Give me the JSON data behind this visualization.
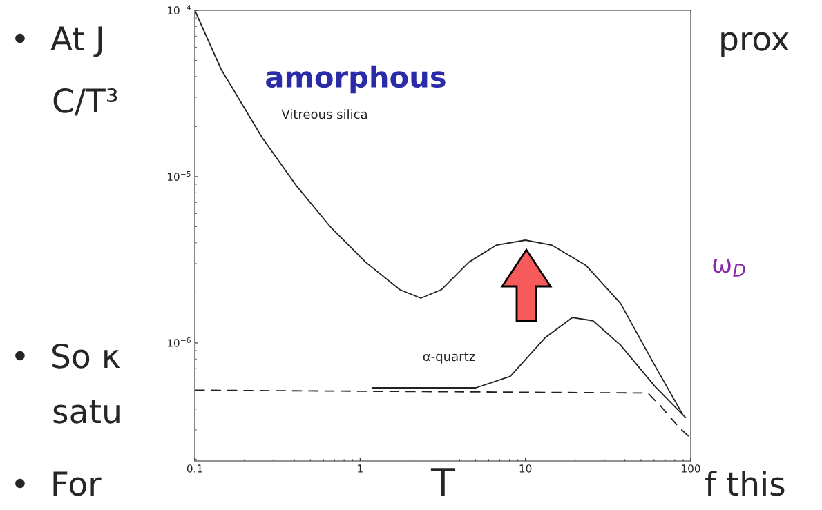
{
  "chart_data": {
    "type": "line",
    "xlabel": "T",
    "log": "xy",
    "xlim": [
      0.1,
      100
    ],
    "ylim": [
      1.95e-07,
      0.0001
    ],
    "xticks": [
      0.1,
      1,
      10,
      100
    ],
    "yticks": [
      {
        "value": 1e-06,
        "label": "10$^{−6}$"
      },
      {
        "value": 1e-05,
        "label": "10$^{−5}$"
      },
      {
        "value": 0.0001,
        "label": "10$^{−4}$"
      }
    ],
    "grid": false,
    "legend": false,
    "series": [
      {
        "color": "#222222",
        "line_style": "solid",
        "x": [
          0.1,
          0.144,
          0.256,
          0.414,
          0.668,
          1.08,
          1.74,
          2.33,
          3.1,
          4.55,
          6.68,
          10,
          14.4,
          23.3,
          37.6,
          60.7,
          89
        ],
        "values": [
          0.0001,
          4.44e-05,
          1.71e-05,
          8.75e-06,
          4.93e-06,
          3.06e-06,
          2.09e-06,
          1.86e-06,
          2.09e-06,
          3.06e-06,
          3.88e-06,
          4.15e-06,
          3.88e-06,
          2.92e-06,
          1.73e-06,
          7.3e-07,
          3.74e-07
        ]
      },
      {
        "color": "#222222",
        "line_style": "solid",
        "x": [
          1.19,
          5.01,
          8.1,
          13.1,
          19.2,
          25.6,
          37.6,
          60.7,
          93
        ],
        "values": [
          5.37e-07,
          5.37e-07,
          6.3e-07,
          1.07e-06,
          1.42e-06,
          1.36e-06,
          9.7e-07,
          5.48e-07,
          3.56e-07
        ]
      },
      {
        "color": "#222222",
        "line_style": "dashed",
        "x": [
          0.1,
          55,
          66.8,
          85,
          100
        ],
        "values": [
          5.2e-07,
          5e-07,
          4.1e-07,
          3.1e-07,
          2.67e-07
        ]
      }
    ],
    "annotations": [
      "amorphous",
      "Vitreous silica",
      "α-quartz",
      "•  At J",
      "prox",
      "C/T³",
      "ω$_{D}$",
      "•  So κ",
      "satu",
      "•  For",
      "f this"
    ]
  }
}
